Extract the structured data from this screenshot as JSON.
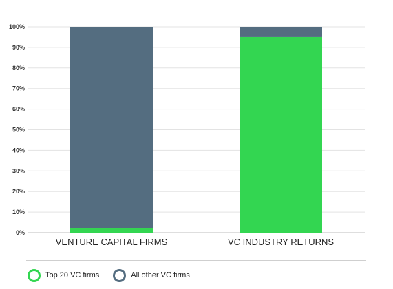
{
  "chart_data": {
    "type": "bar",
    "stacked": true,
    "categories": [
      "VENTURE CAPITAL FIRMS",
      "VC INDUSTRY RETURNS"
    ],
    "series": [
      {
        "name": "Top 20 VC firms",
        "color": "#33d651",
        "values": [
          2,
          95
        ]
      },
      {
        "name": "All other VC firms",
        "color": "#546d80",
        "values": [
          98,
          5
        ]
      }
    ],
    "ylim": [
      0,
      100
    ],
    "y_ticks": [
      "0%",
      "10%",
      "20%",
      "30%",
      "40%",
      "50%",
      "60%",
      "70%",
      "80%",
      "90%",
      "100%"
    ],
    "grid": true,
    "legend_position": "bottom-left",
    "title": "",
    "xlabel": "",
    "ylabel": ""
  }
}
